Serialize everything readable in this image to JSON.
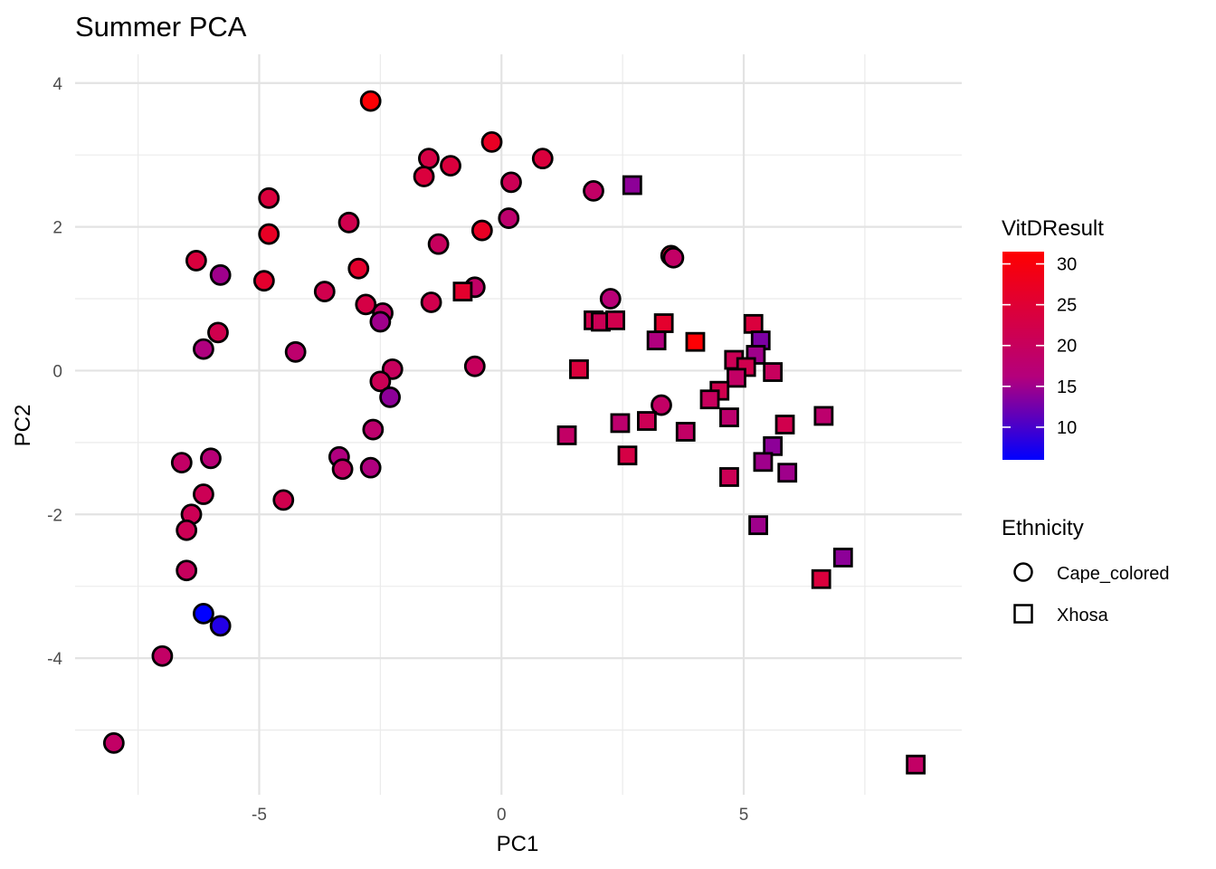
{
  "chart_data": {
    "type": "scatter",
    "title": "Summer PCA",
    "xlabel": "PC1",
    "ylabel": "PC2",
    "xlim": [
      -8.8,
      9.5
    ],
    "ylim": [
      -5.9,
      4.4
    ],
    "x_ticks": [
      -5,
      0,
      5
    ],
    "y_ticks": [
      -4,
      -2,
      0,
      2,
      4
    ],
    "x_tick_labels": [
      "-5",
      "0",
      "5"
    ],
    "y_tick_labels": [
      "-4",
      "-2",
      "0",
      "2",
      "4"
    ],
    "grid": true,
    "color_legend": {
      "title": "VitDResult",
      "min": 6,
      "max": 31.5,
      "ticks": [
        10,
        15,
        20,
        25,
        30
      ],
      "tick_labels": [
        "10",
        "15",
        "20",
        "25",
        "30"
      ],
      "colors": {
        "low": "#0000ff",
        "mid": "#b4007c",
        "high": "#ff0000"
      }
    },
    "shape_legend": {
      "title": "Ethnicity",
      "entries": [
        {
          "label": "Cape_colored",
          "shape": "circle"
        },
        {
          "label": "Xhosa",
          "shape": "square"
        }
      ]
    },
    "series": [
      {
        "name": "Cape_colored",
        "shape": "circle",
        "points": [
          {
            "x": -2.7,
            "y": 3.75,
            "v": 31
          },
          {
            "x": -0.2,
            "y": 3.18,
            "v": 27
          },
          {
            "x": 0.85,
            "y": 2.95,
            "v": 24
          },
          {
            "x": -1.5,
            "y": 2.95,
            "v": 23
          },
          {
            "x": -1.05,
            "y": 2.85,
            "v": 24
          },
          {
            "x": -1.6,
            "y": 2.7,
            "v": 24
          },
          {
            "x": 0.2,
            "y": 2.62,
            "v": 21
          },
          {
            "x": 1.9,
            "y": 2.5,
            "v": 19
          },
          {
            "x": -4.8,
            "y": 2.4,
            "v": 24
          },
          {
            "x": 0.15,
            "y": 2.12,
            "v": 18
          },
          {
            "x": -3.15,
            "y": 2.06,
            "v": 22
          },
          {
            "x": -0.4,
            "y": 1.95,
            "v": 27
          },
          {
            "x": -4.8,
            "y": 1.9,
            "v": 27
          },
          {
            "x": -1.3,
            "y": 1.76,
            "v": 20
          },
          {
            "x": 3.5,
            "y": 1.6,
            "v": 25
          },
          {
            "x": 3.55,
            "y": 1.57,
            "v": 19
          },
          {
            "x": -6.3,
            "y": 1.53,
            "v": 24
          },
          {
            "x": -2.95,
            "y": 1.42,
            "v": 26
          },
          {
            "x": -5.8,
            "y": 1.33,
            "v": 15
          },
          {
            "x": -4.9,
            "y": 1.25,
            "v": 26
          },
          {
            "x": -0.55,
            "y": 1.16,
            "v": 19
          },
          {
            "x": -3.65,
            "y": 1.1,
            "v": 22
          },
          {
            "x": 2.25,
            "y": 1.0,
            "v": 17
          },
          {
            "x": -1.45,
            "y": 0.95,
            "v": 22
          },
          {
            "x": -2.8,
            "y": 0.92,
            "v": 23
          },
          {
            "x": -2.45,
            "y": 0.8,
            "v": 19
          },
          {
            "x": -2.5,
            "y": 0.68,
            "v": 15
          },
          {
            "x": -5.85,
            "y": 0.53,
            "v": 22
          },
          {
            "x": -6.15,
            "y": 0.3,
            "v": 16
          },
          {
            "x": -4.25,
            "y": 0.26,
            "v": 18
          },
          {
            "x": -0.55,
            "y": 0.06,
            "v": 20
          },
          {
            "x": -2.25,
            "y": 0.02,
            "v": 20
          },
          {
            "x": -2.5,
            "y": -0.15,
            "v": 21
          },
          {
            "x": -2.3,
            "y": -0.37,
            "v": 14
          },
          {
            "x": 3.3,
            "y": -0.48,
            "v": 19
          },
          {
            "x": -2.65,
            "y": -0.82,
            "v": 18
          },
          {
            "x": -3.35,
            "y": -1.2,
            "v": 16
          },
          {
            "x": -6.0,
            "y": -1.22,
            "v": 17
          },
          {
            "x": -6.6,
            "y": -1.28,
            "v": 19
          },
          {
            "x": -2.7,
            "y": -1.35,
            "v": 16
          },
          {
            "x": -3.28,
            "y": -1.37,
            "v": 19
          },
          {
            "x": -6.15,
            "y": -1.72,
            "v": 21
          },
          {
            "x": -4.5,
            "y": -1.8,
            "v": 22
          },
          {
            "x": -6.4,
            "y": -2.0,
            "v": 21
          },
          {
            "x": -6.5,
            "y": -2.22,
            "v": 21
          },
          {
            "x": -6.5,
            "y": -2.78,
            "v": 20
          },
          {
            "x": -6.15,
            "y": -3.38,
            "v": 6
          },
          {
            "x": -5.8,
            "y": -3.55,
            "v": 8
          },
          {
            "x": -7.0,
            "y": -3.97,
            "v": 19
          },
          {
            "x": -8.0,
            "y": -5.18,
            "v": 19
          }
        ]
      },
      {
        "name": "Xhosa",
        "shape": "square",
        "points": [
          {
            "x": 2.7,
            "y": 2.58,
            "v": 14
          },
          {
            "x": -0.8,
            "y": 1.1,
            "v": 26
          },
          {
            "x": 1.9,
            "y": 0.7,
            "v": 22
          },
          {
            "x": 2.05,
            "y": 0.68,
            "v": 21
          },
          {
            "x": 2.35,
            "y": 0.7,
            "v": 22
          },
          {
            "x": 3.35,
            "y": 0.66,
            "v": 26
          },
          {
            "x": 5.2,
            "y": 0.65,
            "v": 24
          },
          {
            "x": 3.2,
            "y": 0.42,
            "v": 16
          },
          {
            "x": 5.35,
            "y": 0.42,
            "v": 13
          },
          {
            "x": 4.0,
            "y": 0.4,
            "v": 31
          },
          {
            "x": 5.25,
            "y": 0.22,
            "v": 15
          },
          {
            "x": 4.8,
            "y": 0.15,
            "v": 21
          },
          {
            "x": 5.05,
            "y": 0.05,
            "v": 22
          },
          {
            "x": 1.6,
            "y": 0.02,
            "v": 24
          },
          {
            "x": 5.6,
            "y": -0.02,
            "v": 20
          },
          {
            "x": 4.85,
            "y": -0.1,
            "v": 19
          },
          {
            "x": 4.5,
            "y": -0.28,
            "v": 22
          },
          {
            "x": 4.3,
            "y": -0.4,
            "v": 20
          },
          {
            "x": 4.7,
            "y": -0.65,
            "v": 18
          },
          {
            "x": 6.65,
            "y": -0.63,
            "v": 18
          },
          {
            "x": 2.45,
            "y": -0.73,
            "v": 18
          },
          {
            "x": 3.0,
            "y": -0.7,
            "v": 21
          },
          {
            "x": 5.85,
            "y": -0.75,
            "v": 22
          },
          {
            "x": 3.8,
            "y": -0.85,
            "v": 19
          },
          {
            "x": 1.35,
            "y": -0.9,
            "v": 19
          },
          {
            "x": 5.6,
            "y": -1.05,
            "v": 14
          },
          {
            "x": 2.6,
            "y": -1.18,
            "v": 23
          },
          {
            "x": 5.4,
            "y": -1.27,
            "v": 15
          },
          {
            "x": 5.9,
            "y": -1.42,
            "v": 15
          },
          {
            "x": 4.7,
            "y": -1.48,
            "v": 21
          },
          {
            "x": 5.3,
            "y": -2.15,
            "v": 15
          },
          {
            "x": 7.05,
            "y": -2.6,
            "v": 14
          },
          {
            "x": 6.6,
            "y": -2.9,
            "v": 24
          },
          {
            "x": 8.55,
            "y": -5.48,
            "v": 19
          }
        ]
      }
    ]
  }
}
